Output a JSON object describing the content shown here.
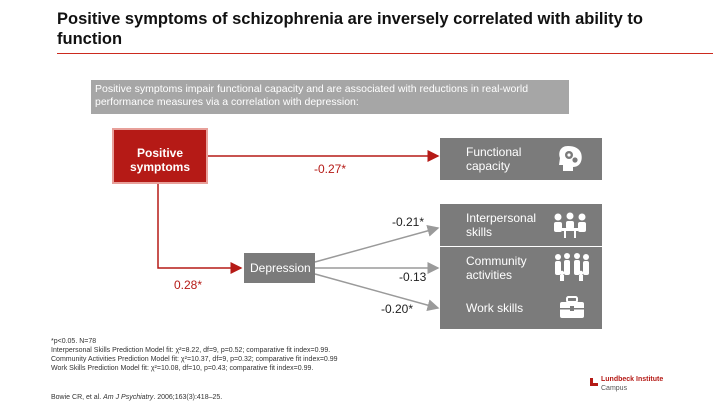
{
  "title": "Positive symptoms of schizophrenia are inversely correlated with ability to function",
  "intro": "Positive symptoms impair functional capacity and are associated with reductions in real-world performance measures via a correlation with depression:",
  "nodes": {
    "positive": "Positive symptoms",
    "depression": "Depression",
    "functional": "Functional capacity",
    "interpersonal": "Interpersonal skills",
    "community": "Community activities",
    "work": "Work skills"
  },
  "coefficients": {
    "pos_to_functional": "-0.27*",
    "pos_to_depression": "0.28*",
    "depr_to_interpersonal": "-0.21*",
    "depr_to_community": "-0.13",
    "depr_to_work": "-0.20*"
  },
  "icons": {
    "functional": "head-gears-icon",
    "interpersonal": "people-meeting-icon",
    "community": "group-people-icon",
    "work": "briefcase-icon"
  },
  "footnotes": [
    "*p<0.05. N=78",
    "Interpersonal Skills Prediction Model fit: χ²=8.22, df=9, p=0.52; comparative fit index=0.99.",
    "Community Activities Prediction Model fit: χ²=10.37, df=9, p=0.32; comparative fit index=0.99",
    "Work Skills Prediction Model fit: χ²=10.08, df=10, p=0.43; comparative fit index=0.99."
  ],
  "reference": {
    "authors": "Bowie CR, et al.",
    "journal": "Am J Psychiatry",
    "details": ". 2006;163(3):418–25."
  },
  "logo": {
    "name": "Lundbeck Institute",
    "sub": "Campus"
  },
  "colors": {
    "accent_red": "#b51a16",
    "box_gray": "#7b7b7b",
    "intro_gray": "#a6a6a6"
  }
}
